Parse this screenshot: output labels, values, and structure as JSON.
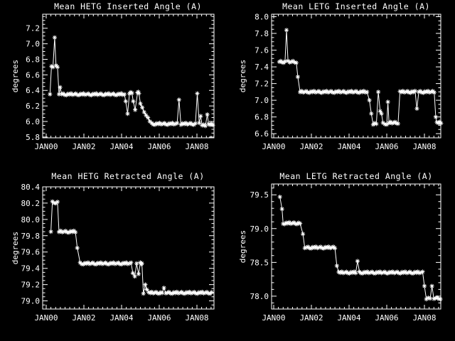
{
  "canvas": {
    "background": "#000000",
    "foreground": "#ffffff"
  },
  "chart_data": [
    {
      "id": "hetg-inserted",
      "type": "line",
      "title": "Mean HETG Inserted Angle (A)",
      "xlabel": "",
      "ylabel": "degrees",
      "marker": "asterisk",
      "line_color": "#ffffff",
      "grid": false,
      "legend": "none",
      "x_tick_labels": [
        "JAN00",
        "JAN02",
        "JAN04",
        "JAN06",
        "JAN08"
      ],
      "x_tick_years": [
        0,
        2,
        4,
        6,
        8
      ],
      "xlim": [
        -0.19,
        8.9
      ],
      "ylim": [
        5.79,
        7.38
      ],
      "ytick_labels": [
        "5.8",
        "6.0",
        "6.2",
        "6.4",
        "6.6",
        "6.8",
        "7.0",
        "7.2"
      ],
      "ytick_values": [
        5.8,
        6.0,
        6.2,
        6.4,
        6.6,
        6.8,
        7.0,
        7.2
      ],
      "minor_x_step": 0.25,
      "minor_y_step": 0.05,
      "segments_note": "each segment is [xStartYearsSince2000, xEndYearsSince2000, degrees]; start==end means single monthly point",
      "segments": [
        [
          0.2,
          0.2,
          6.35
        ],
        [
          0.28,
          0.28,
          6.71
        ],
        [
          0.36,
          0.36,
          6.7
        ],
        [
          0.45,
          0.45,
          7.08
        ],
        [
          0.52,
          0.52,
          6.72
        ],
        [
          0.6,
          0.6,
          6.7
        ],
        [
          0.68,
          0.68,
          6.35
        ],
        [
          0.74,
          0.74,
          6.44
        ],
        [
          0.82,
          4.15,
          6.35
        ],
        [
          4.22,
          4.22,
          6.26
        ],
        [
          4.32,
          4.32,
          6.1
        ],
        [
          4.42,
          4.55,
          6.37
        ],
        [
          4.62,
          4.62,
          6.26
        ],
        [
          4.72,
          4.72,
          6.15
        ],
        [
          4.85,
          4.92,
          6.37
        ],
        [
          5.0,
          5.0,
          6.23
        ],
        [
          5.1,
          5.1,
          6.18
        ],
        [
          5.2,
          5.2,
          6.12
        ],
        [
          5.3,
          5.3,
          6.08
        ],
        [
          5.4,
          5.4,
          6.05
        ],
        [
          5.5,
          5.5,
          6.0
        ],
        [
          5.6,
          6.95,
          5.97
        ],
        [
          7.05,
          7.05,
          6.28
        ],
        [
          7.15,
          7.92,
          5.97
        ],
        [
          8.02,
          8.02,
          6.36
        ],
        [
          8.12,
          8.12,
          5.98
        ],
        [
          8.2,
          8.2,
          6.07
        ],
        [
          8.28,
          8.45,
          5.95
        ],
        [
          8.55,
          8.55,
          6.09
        ],
        [
          8.62,
          8.85,
          5.96
        ]
      ]
    },
    {
      "id": "letg-inserted",
      "type": "line",
      "title": "Mean LETG Inserted Angle (A)",
      "xlabel": "",
      "ylabel": "degrees",
      "marker": "asterisk",
      "line_color": "#ffffff",
      "grid": false,
      "legend": "none",
      "x_tick_labels": [
        "JAN00",
        "JAN02",
        "JAN04",
        "JAN06",
        "JAN08"
      ],
      "x_tick_years": [
        0,
        2,
        4,
        6,
        8
      ],
      "xlim": [
        -0.19,
        8.9
      ],
      "ylim": [
        6.55,
        8.03
      ],
      "ytick_labels": [
        "6.6",
        "6.8",
        "7.0",
        "7.2",
        "7.4",
        "7.6",
        "7.8",
        "8.0"
      ],
      "ytick_values": [
        6.6,
        6.8,
        7.0,
        7.2,
        7.4,
        7.6,
        7.8,
        8.0
      ],
      "minor_x_step": 0.25,
      "minor_y_step": 0.05,
      "segments": [
        [
          0.3,
          0.6,
          7.46
        ],
        [
          0.68,
          0.68,
          7.84
        ],
        [
          0.76,
          1.2,
          7.46
        ],
        [
          1.28,
          1.28,
          7.28
        ],
        [
          1.4,
          4.95,
          7.1
        ],
        [
          5.08,
          5.08,
          7.0
        ],
        [
          5.18,
          5.18,
          6.84
        ],
        [
          5.28,
          5.45,
          6.72
        ],
        [
          5.55,
          5.55,
          7.1
        ],
        [
          5.65,
          5.65,
          6.87
        ],
        [
          5.72,
          5.72,
          6.84
        ],
        [
          5.8,
          6.0,
          6.72
        ],
        [
          6.06,
          6.06,
          6.98
        ],
        [
          6.12,
          6.6,
          6.73
        ],
        [
          6.7,
          7.5,
          7.1
        ],
        [
          7.6,
          7.6,
          6.9
        ],
        [
          7.7,
          8.52,
          7.1
        ],
        [
          8.6,
          8.6,
          6.8
        ],
        [
          8.66,
          8.88,
          6.73
        ]
      ]
    },
    {
      "id": "hetg-retracted",
      "type": "line",
      "title": "Mean HETG Retracted Angle (A)",
      "xlabel": "",
      "ylabel": "degrees",
      "marker": "asterisk",
      "line_color": "#ffffff",
      "grid": false,
      "legend": "none",
      "x_tick_labels": [
        "JAN00",
        "JAN02",
        "JAN04",
        "JAN06",
        "JAN08"
      ],
      "x_tick_years": [
        0,
        2,
        4,
        6,
        8
      ],
      "xlim": [
        -0.19,
        8.9
      ],
      "ylim": [
        78.9,
        80.4
      ],
      "ytick_labels": [
        "79.0",
        "79.2",
        "79.4",
        "79.6",
        "79.8",
        "80.0",
        "80.2",
        "80.4"
      ],
      "ytick_values": [
        79.0,
        79.2,
        79.4,
        79.6,
        79.8,
        80.0,
        80.2,
        80.4
      ],
      "minor_x_step": 0.25,
      "minor_y_step": 0.05,
      "segments": [
        [
          0.25,
          0.25,
          79.85
        ],
        [
          0.33,
          0.6,
          80.21
        ],
        [
          0.68,
          1.55,
          79.85
        ],
        [
          1.65,
          1.65,
          79.65
        ],
        [
          1.8,
          4.5,
          79.46
        ],
        [
          4.6,
          4.6,
          79.34
        ],
        [
          4.7,
          4.7,
          79.3
        ],
        [
          4.8,
          4.8,
          79.46
        ],
        [
          4.9,
          4.9,
          79.33
        ],
        [
          5.0,
          5.08,
          79.46
        ],
        [
          5.16,
          5.16,
          79.09
        ],
        [
          5.26,
          5.26,
          79.2
        ],
        [
          5.34,
          5.34,
          79.14
        ],
        [
          5.44,
          6.15,
          79.1
        ],
        [
          6.25,
          6.25,
          79.16
        ],
        [
          6.35,
          8.78,
          79.1
        ]
      ]
    },
    {
      "id": "letg-retracted",
      "type": "line",
      "title": "Mean LETG Retracted Angle (A)",
      "xlabel": "",
      "ylabel": "degrees",
      "marker": "asterisk",
      "line_color": "#ffffff",
      "grid": false,
      "legend": "none",
      "x_tick_labels": [
        "JAN00",
        "JAN02",
        "JAN04",
        "JAN06",
        "JAN08"
      ],
      "x_tick_years": [
        0,
        2,
        4,
        6,
        8
      ],
      "xlim": [
        -0.19,
        8.9
      ],
      "ylim": [
        77.81,
        79.66
      ],
      "ytick_labels": [
        "78.0",
        "78.5",
        "79.0",
        "79.5"
      ],
      "ytick_values": [
        78.0,
        78.5,
        79.0,
        79.5
      ],
      "minor_x_step": 0.25,
      "minor_y_step": 0.1,
      "segments": [
        [
          0.33,
          0.33,
          79.47
        ],
        [
          0.44,
          0.44,
          79.29
        ],
        [
          0.5,
          1.4,
          79.08
        ],
        [
          1.55,
          1.55,
          78.92
        ],
        [
          1.65,
          3.25,
          78.72
        ],
        [
          3.35,
          3.35,
          78.45
        ],
        [
          3.45,
          4.35,
          78.35
        ],
        [
          4.45,
          4.45,
          78.52
        ],
        [
          4.55,
          7.9,
          78.35
        ],
        [
          8.0,
          8.0,
          78.15
        ],
        [
          8.1,
          8.3,
          77.97
        ],
        [
          8.4,
          8.4,
          78.15
        ],
        [
          8.5,
          8.85,
          77.97
        ]
      ]
    }
  ]
}
